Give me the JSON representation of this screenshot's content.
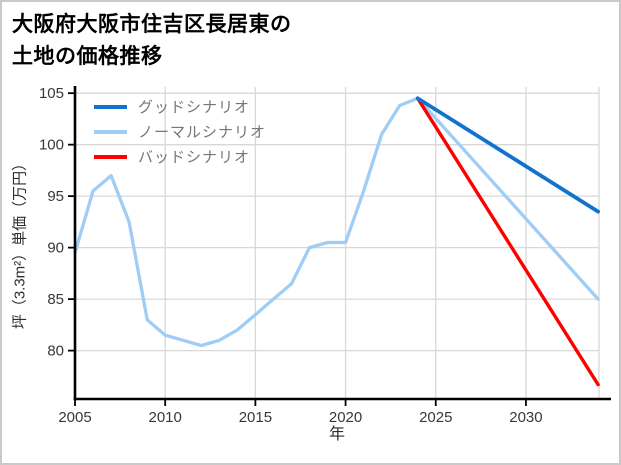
{
  "chart_data": {
    "type": "line",
    "title": "大阪府大阪市住吉区長居東の\n土地の価格推移",
    "xlabel": "年",
    "ylabel": "坪（3.3m²）単価（万円）",
    "xlim": [
      2005,
      2034.05
    ],
    "ylim": [
      75.3,
      105.6
    ],
    "xticks": [
      2005,
      2010,
      2015,
      2020,
      2025,
      2030
    ],
    "yticks": [
      80,
      85,
      90,
      95,
      100,
      105
    ],
    "grid": true,
    "grid_color": "#d8d8d8",
    "tick_label_color": "#383838",
    "axis_color": "#000000",
    "legend_position": "top-left",
    "series": [
      {
        "id": "good",
        "name": "グッドシナリオ",
        "color": "#1273cd",
        "x": [
          2024,
          2034
        ],
        "y": [
          104.5,
          93.5
        ]
      },
      {
        "id": "normal",
        "name": "ノーマルシナリオ",
        "color": "#9fcdf5",
        "x": [
          2005,
          2006,
          2007,
          2008,
          2009,
          2010,
          2011,
          2012,
          2013,
          2014,
          2015,
          2016,
          2017,
          2018,
          2019,
          2020,
          2021,
          2022,
          2023,
          2024,
          2034
        ],
        "y": [
          89.5,
          95.5,
          97,
          92.5,
          83,
          81.5,
          81,
          80.5,
          81,
          82,
          83.5,
          85,
          86.5,
          90,
          90.5,
          90.5,
          95.5,
          101,
          103.8,
          104.5,
          85
        ]
      },
      {
        "id": "bad",
        "name": "バッドシナリオ",
        "color": "#ff0000",
        "x": [
          2024,
          2034
        ],
        "y": [
          104.5,
          76.7
        ]
      }
    ]
  }
}
